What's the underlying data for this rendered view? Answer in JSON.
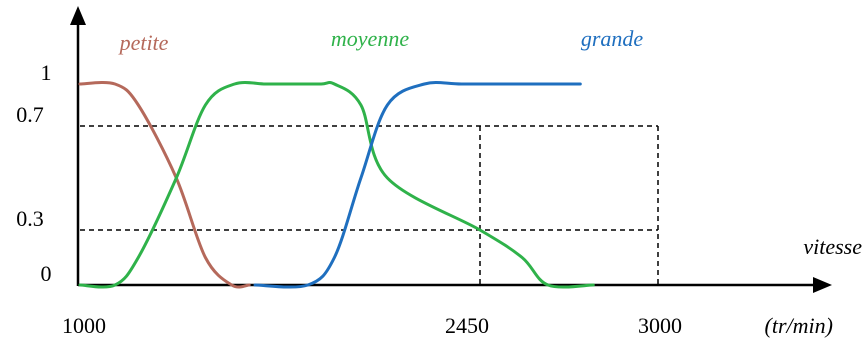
{
  "chart_data": {
    "type": "line",
    "title": "",
    "xlabel": "vitesse",
    "x_unit": "(tr/min)",
    "ylabel": "",
    "xlim": [
      1000,
      3000
    ],
    "ylim": [
      0,
      1
    ],
    "x_ticks": [
      "1000",
      "2450",
      "3000"
    ],
    "y_ticks": [
      "0",
      "0.3",
      "0.7",
      "1"
    ],
    "reference_lines": {
      "horizontal": [
        0.3,
        0.7
      ],
      "vertical": [
        2450,
        3000
      ]
    },
    "series": [
      {
        "name": "petite",
        "color": "#b5695b",
        "x": [
          1000,
          1120,
          1200,
          1330,
          1430,
          1520,
          1580
        ],
        "y": [
          1,
          1,
          0.85,
          0.5,
          0.15,
          0,
          0
        ]
      },
      {
        "name": "moyenne",
        "color": "#2fb24a",
        "x": [
          1000,
          1120,
          1200,
          1330,
          1430,
          1530,
          1640,
          1740,
          1850,
          1900,
          2000,
          2100,
          2450,
          2580,
          2660,
          2800
        ],
        "y": [
          0,
          0,
          0.15,
          0.5,
          0.85,
          1,
          1,
          1,
          1,
          1,
          0.85,
          0.5,
          0.3,
          0.15,
          0,
          0
        ]
      },
      {
        "name": "grande",
        "color": "#1f6fbf",
        "x": [
          1600,
          1800,
          1900,
          2000,
          2100,
          2240,
          2380,
          2560,
          2660,
          2760
        ],
        "y": [
          0,
          0,
          0.15,
          0.5,
          0.85,
          1,
          1,
          1,
          1,
          1
        ]
      }
    ]
  }
}
